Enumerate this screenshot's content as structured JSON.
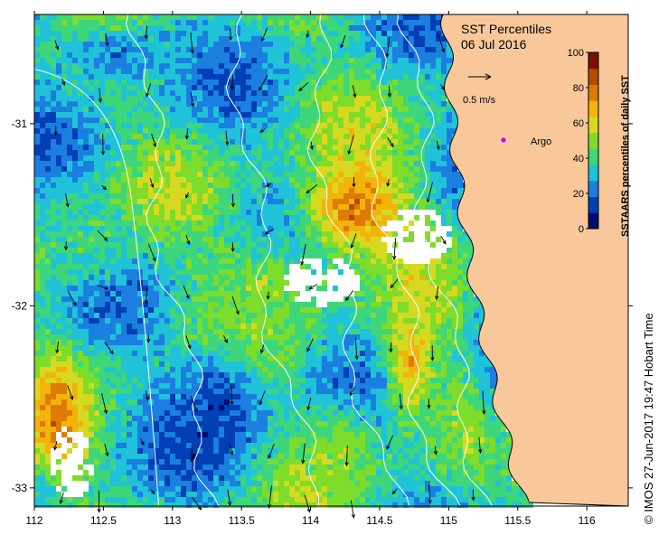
{
  "title": "SST Percentiles",
  "date": "06 Jul 2016",
  "scale_label": "0.5 m/s",
  "argo_label": "Argo",
  "colorbar": {
    "title": "SSTAARS percentiles of daily SST",
    "ticks": [
      "0",
      "20",
      "40",
      "60",
      "80",
      "100"
    ],
    "colors": [
      "#000d6e",
      "#003fb5",
      "#1b7fe0",
      "#20c2d8",
      "#3dd67a",
      "#7edc2b",
      "#d7d920",
      "#f3b30a",
      "#df7a06",
      "#b54a05",
      "#7a1003"
    ]
  },
  "x_ticks": [
    "112",
    "112.5",
    "113",
    "113.5",
    "114",
    "114.5",
    "115",
    "115.5",
    "116"
  ],
  "y_ticks": [
    "-31",
    "-32",
    "-33"
  ],
  "credit": "© IMOS 27-Jun-2017 19:47 Hobart Time",
  "colors": {
    "land": "#f9c89a",
    "argo_marker": "#e000e0",
    "missing": "#ffffff"
  },
  "map_extent": {
    "lon": [
      112,
      116.3
    ],
    "lat": [
      -30.4,
      -33.1
    ]
  },
  "regions": [
    {
      "name": "sw-warm",
      "lon": 112.15,
      "lat": -32.6,
      "rx": 0.2,
      "ry": 0.35,
      "level": 8
    },
    {
      "name": "center-warm",
      "lon": 114.3,
      "lat": -31.45,
      "rx": 0.45,
      "ry": 0.3,
      "level": 8
    },
    {
      "name": "south-warm",
      "lon": 114.7,
      "lat": -32.3,
      "rx": 0.2,
      "ry": 0.35,
      "level": 7
    },
    {
      "name": "central-cold",
      "lon": 113.3,
      "lat": -32.55,
      "rx": 0.4,
      "ry": 0.4,
      "level": 1
    },
    {
      "name": "north-cold",
      "lon": 112.6,
      "lat": -30.6,
      "rx": 0.6,
      "ry": 0.2,
      "level": 2
    },
    {
      "name": "coastal-cold",
      "lon": 115.35,
      "lat": -32.0,
      "rx": 0.2,
      "ry": 0.9,
      "level": 2
    },
    {
      "name": "west-green",
      "lon": 112.4,
      "lat": -31.6,
      "rx": 0.35,
      "ry": 0.35,
      "level": 4
    },
    {
      "name": "mid-green",
      "lon": 113.7,
      "lat": -31.9,
      "rx": 0.5,
      "ry": 0.3,
      "level": 5
    },
    {
      "name": "south-center-green",
      "lon": 114.2,
      "lat": -32.8,
      "rx": 0.35,
      "ry": 0.3,
      "level": 5
    }
  ]
}
